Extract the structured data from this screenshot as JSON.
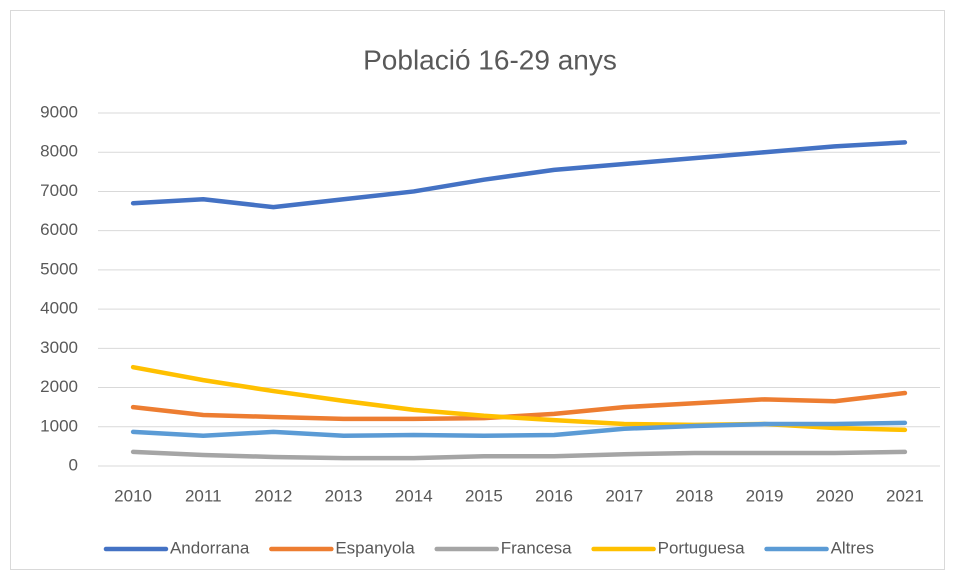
{
  "chart_data": {
    "type": "line",
    "title": "Població 16-29 anys",
    "categories": [
      "2010",
      "2011",
      "2012",
      "2013",
      "2014",
      "2015",
      "2016",
      "2017",
      "2018",
      "2019",
      "2020",
      "2021"
    ],
    "series": [
      {
        "name": "Andorrana",
        "color": "#4472c4",
        "values": [
          6700,
          6800,
          6600,
          6800,
          7000,
          7300,
          7550,
          7700,
          7850,
          8000,
          8150,
          8250
        ]
      },
      {
        "name": "Espanyola",
        "color": "#ed7d31",
        "values": [
          1500,
          1300,
          1250,
          1200,
          1200,
          1220,
          1330,
          1500,
          1600,
          1700,
          1650,
          1860
        ]
      },
      {
        "name": "Francesa",
        "color": "#a5a5a5",
        "values": [
          360,
          280,
          230,
          200,
          200,
          250,
          250,
          300,
          330,
          330,
          330,
          360
        ]
      },
      {
        "name": "Portuguesa",
        "color": "#ffc000",
        "values": [
          2520,
          2190,
          1910,
          1660,
          1430,
          1280,
          1170,
          1070,
          1050,
          1070,
          970,
          920
        ]
      },
      {
        "name": "Altres",
        "color": "#5b9bd5",
        "values": [
          870,
          770,
          870,
          770,
          790,
          770,
          790,
          950,
          1020,
          1070,
          1070,
          1100
        ]
      }
    ],
    "ylim": [
      0,
      9000
    ],
    "yticks": [
      0,
      1000,
      2000,
      3000,
      4000,
      5000,
      6000,
      7000,
      8000,
      9000
    ],
    "grid": true,
    "legend": "bottom"
  }
}
